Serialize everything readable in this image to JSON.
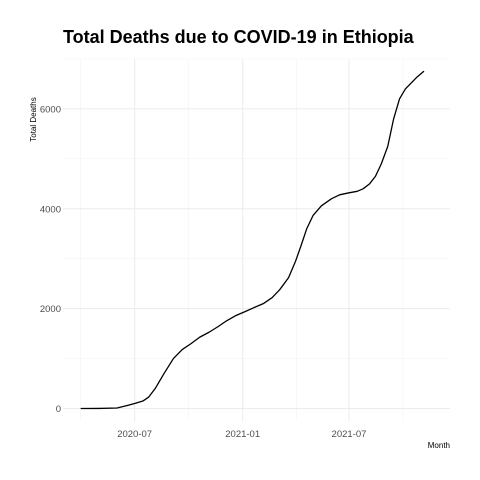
{
  "chart_data": {
    "type": "line",
    "title": "Total Deaths due to COVID-19 in Ethiopia",
    "xlabel": "Month",
    "ylabel": "Total Deaths",
    "grid": true,
    "legend": "none",
    "xlim": [
      "2020-03-01",
      "2021-12-20"
    ],
    "ylim": [
      -250,
      7000
    ],
    "x_ticks": [
      {
        "date": "2020-07-01",
        "label": "2020-07"
      },
      {
        "date": "2021-01-01",
        "label": "2021-01"
      },
      {
        "date": "2021-07-01",
        "label": "2021-07"
      }
    ],
    "y_ticks": [
      0,
      2000,
      4000,
      6000
    ],
    "series": [
      {
        "name": "Total Deaths",
        "color": "#000000",
        "points": [
          [
            "2020-04-01",
            0
          ],
          [
            "2020-05-01",
            2
          ],
          [
            "2020-06-01",
            10
          ],
          [
            "2020-06-15",
            50
          ],
          [
            "2020-07-01",
            100
          ],
          [
            "2020-07-15",
            150
          ],
          [
            "2020-07-25",
            230
          ],
          [
            "2020-08-05",
            400
          ],
          [
            "2020-08-20",
            700
          ],
          [
            "2020-09-05",
            1000
          ],
          [
            "2020-09-20",
            1180
          ],
          [
            "2020-10-05",
            1300
          ],
          [
            "2020-10-20",
            1430
          ],
          [
            "2020-11-05",
            1530
          ],
          [
            "2020-11-20",
            1640
          ],
          [
            "2020-12-05",
            1760
          ],
          [
            "2020-12-20",
            1860
          ],
          [
            "2021-01-05",
            1940
          ],
          [
            "2021-01-20",
            2020
          ],
          [
            "2021-02-05",
            2100
          ],
          [
            "2021-02-20",
            2220
          ],
          [
            "2021-03-05",
            2380
          ],
          [
            "2021-03-20",
            2620
          ],
          [
            "2021-04-01",
            2950
          ],
          [
            "2021-04-10",
            3250
          ],
          [
            "2021-04-20",
            3600
          ],
          [
            "2021-05-01",
            3870
          ],
          [
            "2021-05-15",
            4060
          ],
          [
            "2021-06-01",
            4200
          ],
          [
            "2021-06-15",
            4280
          ],
          [
            "2021-07-01",
            4320
          ],
          [
            "2021-07-15",
            4350
          ],
          [
            "2021-07-25",
            4400
          ],
          [
            "2021-08-05",
            4500
          ],
          [
            "2021-08-15",
            4650
          ],
          [
            "2021-08-25",
            4900
          ],
          [
            "2021-09-05",
            5250
          ],
          [
            "2021-09-15",
            5800
          ],
          [
            "2021-09-25",
            6200
          ],
          [
            "2021-10-05",
            6400
          ],
          [
            "2021-10-15",
            6520
          ],
          [
            "2021-10-25",
            6640
          ],
          [
            "2021-11-05",
            6750
          ]
        ]
      }
    ]
  }
}
